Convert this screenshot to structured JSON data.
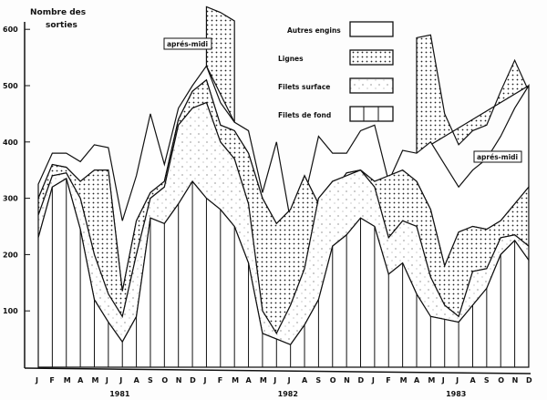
{
  "chart_data": {
    "type": "area",
    "stacked": true,
    "title": "",
    "ylabel": "Nombre des sorties",
    "ylim": [
      0,
      650
    ],
    "yticks": [
      100,
      200,
      300,
      400,
      500,
      600
    ],
    "months": [
      "J",
      "F",
      "M",
      "A",
      "M",
      "J",
      "J",
      "A",
      "S",
      "O",
      "N",
      "D",
      "J",
      "F",
      "M",
      "A",
      "M",
      "J",
      "J",
      "A",
      "S",
      "O",
      "N",
      "D",
      "J",
      "F",
      "M",
      "A",
      "M",
      "J",
      "J",
      "A",
      "S",
      "O",
      "N",
      "D"
    ],
    "years": [
      "1981",
      "1982",
      "1983"
    ],
    "legend_placement": "top-center",
    "legend": [
      {
        "name": "Autres engins",
        "pattern": "blank"
      },
      {
        "name": "Lignes",
        "pattern": "dots"
      },
      {
        "name": "Filets surface",
        "pattern": "sparse-dots"
      },
      {
        "name": "Filets de fond",
        "pattern": "vertical-lines"
      }
    ],
    "series_cumulative": [
      {
        "name": "Filets de fond",
        "values": [
          230,
          320,
          335,
          245,
          120,
          80,
          45,
          90,
          265,
          255,
          290,
          330,
          300,
          280,
          250,
          185,
          60,
          50,
          40,
          75,
          120,
          215,
          235,
          265,
          250,
          165,
          185,
          130,
          90,
          85,
          80,
          110,
          140,
          200,
          225,
          190
        ]
      },
      {
        "name": "Filets surface",
        "values": [
          270,
          340,
          345,
          300,
          200,
          130,
          90,
          200,
          300,
          320,
          430,
          460,
          470,
          400,
          370,
          290,
          100,
          60,
          110,
          175,
          300,
          330,
          340,
          350,
          320,
          230,
          260,
          250,
          160,
          110,
          90,
          170,
          175,
          230,
          235,
          215
        ]
      },
      {
        "name": "Lignes",
        "values": [
          300,
          360,
          355,
          330,
          350,
          350,
          135,
          260,
          310,
          330,
          440,
          490,
          510,
          430,
          420,
          380,
          300,
          255,
          280,
          340,
          290,
          310,
          345,
          350,
          330,
          340,
          350,
          330,
          280,
          180,
          240,
          250,
          245,
          260,
          290,
          320
        ]
      },
      {
        "name": "Autres engins",
        "values": [
          325,
          380,
          380,
          365,
          395,
          390,
          260,
          340,
          450,
          360,
          460,
          500,
          535,
          470,
          435,
          420,
          310,
          400,
          260,
          300,
          410,
          380,
          380,
          420,
          430,
          330,
          385,
          380,
          400,
          360,
          320,
          350,
          370,
          410,
          460,
          500
        ]
      }
    ],
    "apres_midi": {
      "label": "aprés-midi",
      "segments": [
        {
          "start_index": 12,
          "values": [
            640,
            630,
            615
          ]
        },
        {
          "start_index": 27,
          "values": [
            585,
            590,
            450,
            395,
            420,
            430,
            490,
            545,
            490
          ]
        }
      ]
    }
  }
}
